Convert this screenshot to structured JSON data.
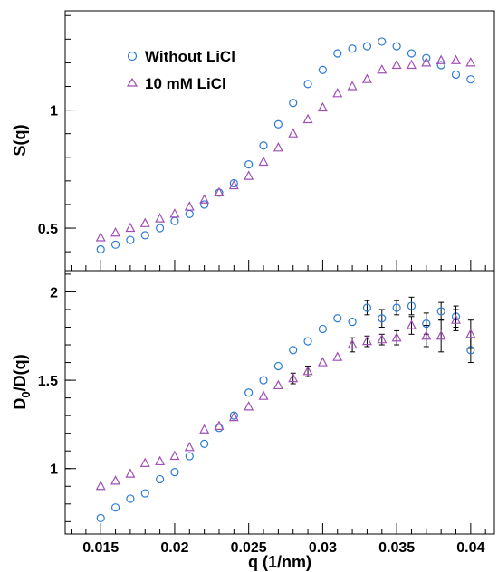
{
  "chart_data": [
    {
      "type": "scatter",
      "panel": "top",
      "ylabel": "S(q)",
      "ylim": [
        0.32,
        1.42
      ],
      "yticks": [
        0.5,
        1
      ],
      "ytick_labels": [
        "0.5",
        "1"
      ],
      "xlim": [
        0.0126,
        0.0416
      ],
      "legend": {
        "placement": "top-left",
        "entries": [
          "Without LiCl",
          "10 mM LiCl"
        ]
      },
      "series": [
        {
          "name": "Without LiCl",
          "marker": "circle",
          "color": "#2b7bd6",
          "x": [
            0.015,
            0.016,
            0.017,
            0.018,
            0.019,
            0.02,
            0.021,
            0.022,
            0.023,
            0.024,
            0.025,
            0.026,
            0.027,
            0.028,
            0.029,
            0.03,
            0.031,
            0.032,
            0.033,
            0.034,
            0.035,
            0.036,
            0.037,
            0.038,
            0.039,
            0.04
          ],
          "y": [
            0.41,
            0.43,
            0.45,
            0.47,
            0.5,
            0.53,
            0.56,
            0.6,
            0.65,
            0.69,
            0.77,
            0.85,
            0.94,
            1.03,
            1.11,
            1.17,
            1.24,
            1.26,
            1.27,
            1.29,
            1.27,
            1.24,
            1.22,
            1.19,
            1.15,
            1.13
          ]
        },
        {
          "name": "10 mM LiCl",
          "marker": "triangle",
          "color": "#a04fb5",
          "x": [
            0.015,
            0.016,
            0.017,
            0.018,
            0.019,
            0.02,
            0.021,
            0.022,
            0.023,
            0.024,
            0.025,
            0.026,
            0.027,
            0.028,
            0.029,
            0.03,
            0.031,
            0.032,
            0.033,
            0.034,
            0.035,
            0.036,
            0.037,
            0.038,
            0.039,
            0.04
          ],
          "y": [
            0.46,
            0.48,
            0.5,
            0.52,
            0.54,
            0.56,
            0.59,
            0.62,
            0.65,
            0.68,
            0.72,
            0.78,
            0.84,
            0.9,
            0.96,
            1.01,
            1.07,
            1.1,
            1.13,
            1.17,
            1.19,
            1.19,
            1.2,
            1.21,
            1.21,
            1.2
          ]
        }
      ]
    },
    {
      "type": "scatter",
      "panel": "bottom",
      "xlabel": "q (1/nm)",
      "ylabel": "D_0/D(q)",
      "ylabel_main": "D",
      "ylabel_sub": "0",
      "ylabel_rest": "/D(q)",
      "ylim": [
        0.63,
        2.12
      ],
      "yticks": [
        1,
        1.5,
        2
      ],
      "ytick_labels": [
        "1",
        "1.5",
        "2"
      ],
      "xlim": [
        0.0126,
        0.0416
      ],
      "xticks": [
        0.015,
        0.02,
        0.025,
        0.03,
        0.035,
        0.04
      ],
      "xtick_labels": [
        "0.015",
        "0.02",
        "0.025",
        "0.03",
        "0.035",
        "0.04"
      ],
      "series": [
        {
          "name": "Without LiCl",
          "marker": "circle",
          "color": "#2b7bd6",
          "x": [
            0.015,
            0.016,
            0.017,
            0.018,
            0.019,
            0.02,
            0.021,
            0.022,
            0.023,
            0.024,
            0.025,
            0.026,
            0.027,
            0.028,
            0.029,
            0.03,
            0.031,
            0.032,
            0.033,
            0.034,
            0.035,
            0.036,
            0.037,
            0.038,
            0.039,
            0.04
          ],
          "y": [
            0.72,
            0.78,
            0.83,
            0.86,
            0.94,
            0.98,
            1.07,
            1.14,
            1.23,
            1.3,
            1.43,
            1.5,
            1.58,
            1.67,
            1.72,
            1.79,
            1.85,
            1.83,
            1.91,
            1.85,
            1.91,
            1.92,
            1.82,
            1.89,
            1.86,
            1.67
          ],
          "err": [
            0,
            0,
            0,
            0,
            0,
            0,
            0,
            0,
            0,
            0,
            0,
            0,
            0,
            0,
            0,
            0,
            0,
            0,
            0.04,
            0.05,
            0.04,
            0.05,
            0.06,
            0.05,
            0.06,
            0.07
          ]
        },
        {
          "name": "10 mM LiCl",
          "marker": "triangle",
          "color": "#a04fb5",
          "x": [
            0.015,
            0.016,
            0.017,
            0.018,
            0.019,
            0.02,
            0.021,
            0.022,
            0.023,
            0.024,
            0.025,
            0.026,
            0.027,
            0.028,
            0.029,
            0.03,
            0.031,
            0.032,
            0.033,
            0.034,
            0.035,
            0.036,
            0.037,
            0.038,
            0.039,
            0.04
          ],
          "y": [
            0.9,
            0.93,
            0.97,
            1.03,
            1.04,
            1.07,
            1.12,
            1.22,
            1.24,
            1.29,
            1.35,
            1.41,
            1.47,
            1.51,
            1.55,
            1.6,
            1.63,
            1.7,
            1.72,
            1.73,
            1.74,
            1.81,
            1.75,
            1.75,
            1.84,
            1.76
          ],
          "err": [
            0,
            0,
            0,
            0,
            0,
            0,
            0,
            0,
            0,
            0,
            0,
            0,
            0,
            0.03,
            0.03,
            0,
            0,
            0.04,
            0.03,
            0.03,
            0.04,
            0.05,
            0.06,
            0.09,
            0.06,
            0.08
          ]
        }
      ]
    }
  ]
}
